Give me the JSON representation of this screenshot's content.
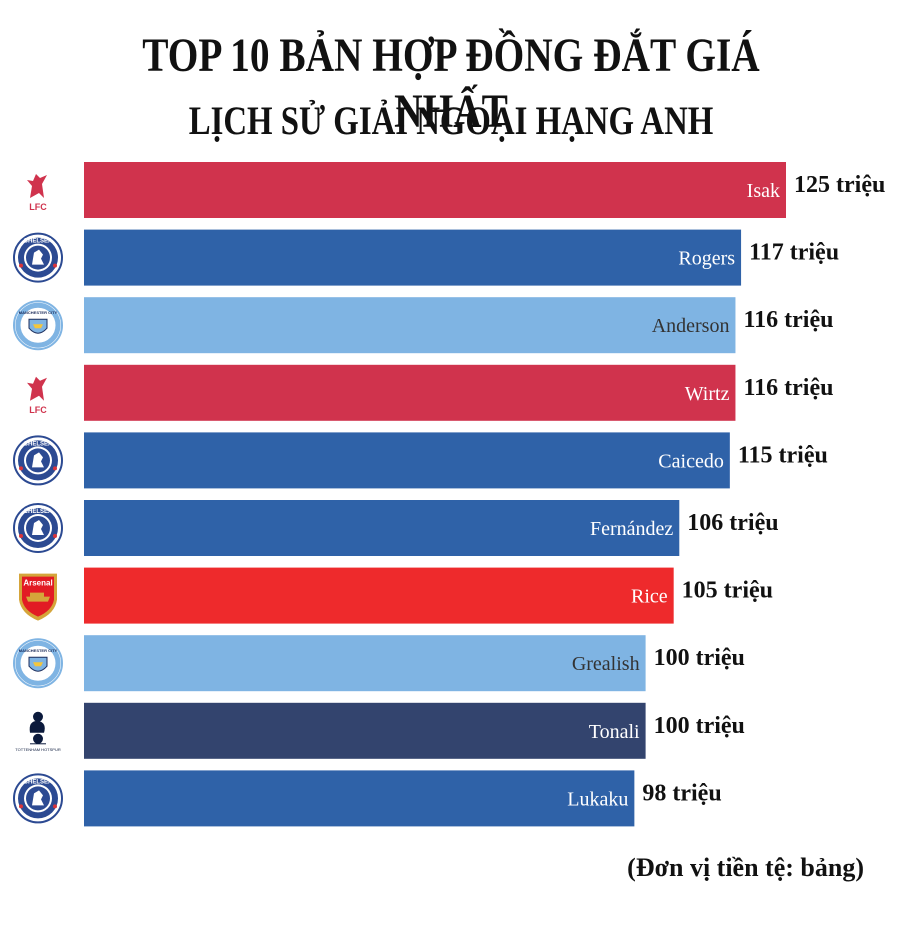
{
  "header": {
    "title": "TOP 10 BẢN HỢP ĐỒNG ĐẮT GIÁ NHẤT",
    "subtitle": "LỊCH SỬ GIẢI NGOẠI HẠNG ANH"
  },
  "footer": {
    "unit_note": "(Đơn vị tiền tệ: bảng)"
  },
  "colors": {
    "liverpool": "#D0334D",
    "chelsea": "#2F62A8",
    "man_city": "#7FB4E3",
    "arsenal": "#EE2A2C",
    "tottenham": "#33446E"
  },
  "chart_data": {
    "type": "bar",
    "orientation": "horizontal",
    "categories": [
      "Isak",
      "Rogers",
      "Anderson",
      "Wirtz",
      "Caicedo",
      "Fernández",
      "Rice",
      "Grealish",
      "Tonali",
      "Lukaku"
    ],
    "values": [
      125,
      117,
      116,
      116,
      115,
      106,
      105,
      100,
      100,
      98
    ],
    "value_labels": [
      "125 triệu",
      "117 triệu",
      "116 triệu",
      "116 triệu",
      "115 triệu",
      "106 triệu",
      "105 triệu",
      "100 triệu",
      "100 triệu",
      "98 triệu"
    ],
    "clubs": [
      "liverpool",
      "chelsea",
      "man_city",
      "liverpool",
      "chelsea",
      "chelsea",
      "arsenal",
      "man_city",
      "tottenham",
      "chelsea"
    ],
    "club_logo_text": {
      "liverpool": "LFC",
      "chelsea": "CHELSEA",
      "man_city": "MANCHESTER CITY",
      "arsenal": "Arsenal",
      "tottenham": "TOTTENHAM HOTSPUR"
    },
    "xlim": [
      0,
      125
    ],
    "grid": false,
    "legend": "none"
  }
}
